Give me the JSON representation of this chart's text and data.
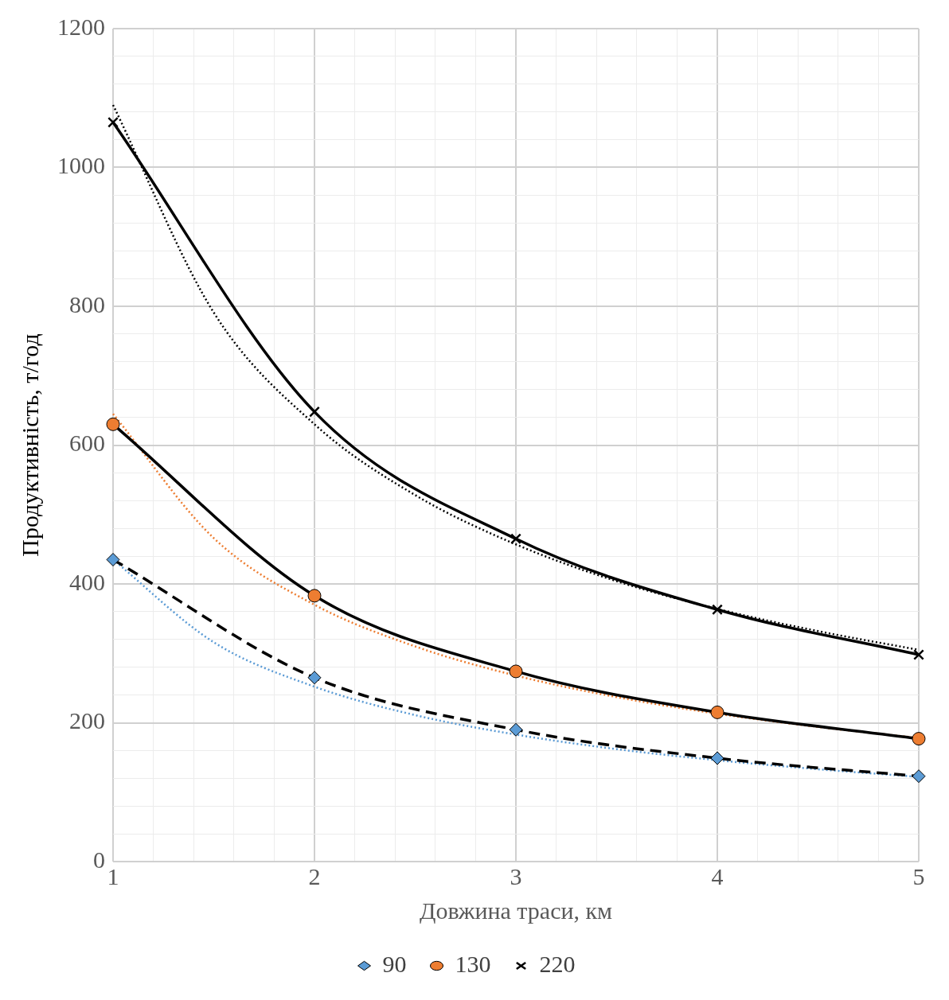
{
  "chart_data": {
    "type": "line",
    "xlabel": "Довжина траси, км",
    "ylabel": "Продуктивність, т/год",
    "x": [
      1,
      2,
      3,
      4,
      5
    ],
    "xlim": [
      1,
      5
    ],
    "xticks": [
      1,
      {
        "value": 1.2,
        "label": null
      },
      {
        "value": 1.4,
        "label": null
      },
      {
        "value": 1.6,
        "label": null
      },
      {
        "value": 1.8,
        "label": null
      },
      2,
      {
        "value": 2.2,
        "label": null
      },
      {
        "value": 2.4,
        "label": null
      },
      {
        "value": 2.6,
        "label": null
      },
      {
        "value": 2.8,
        "label": null
      },
      3,
      {
        "value": 3.2,
        "label": null
      },
      {
        "value": 3.4,
        "label": null
      },
      {
        "value": 3.6,
        "label": null
      },
      {
        "value": 3.8,
        "label": null
      },
      4,
      {
        "value": 4.2,
        "label": null
      },
      {
        "value": 4.4,
        "label": null
      },
      {
        "value": 4.6,
        "label": null
      },
      {
        "value": 4.8,
        "label": null
      },
      5
    ],
    "ylim": [
      0,
      1200
    ],
    "yticks": [
      0,
      {
        "value": 40,
        "label": null
      },
      {
        "value": 80,
        "label": null
      },
      {
        "value": 120,
        "label": null
      },
      {
        "value": 160,
        "label": null
      },
      200,
      {
        "value": 240,
        "label": null
      },
      {
        "value": 280,
        "label": null
      },
      {
        "value": 320,
        "label": null
      },
      {
        "value": 360,
        "label": null
      },
      400,
      {
        "value": 440,
        "label": null
      },
      {
        "value": 480,
        "label": null
      },
      {
        "value": 520,
        "label": null
      },
      {
        "value": 560,
        "label": null
      },
      600,
      {
        "value": 640,
        "label": null
      },
      {
        "value": 680,
        "label": null
      },
      {
        "value": 720,
        "label": null
      },
      {
        "value": 760,
        "label": null
      },
      800,
      {
        "value": 840,
        "label": null
      },
      {
        "value": 880,
        "label": null
      },
      {
        "value": 920,
        "label": null
      },
      {
        "value": 960,
        "label": null
      },
      1000,
      {
        "value": 1040,
        "label": null
      },
      {
        "value": 1080,
        "label": null
      },
      {
        "value": 1120,
        "label": null
      },
      {
        "value": 1160,
        "label": null
      },
      1200
    ],
    "grid": true,
    "legend": "bottom",
    "series": [
      {
        "name": "90",
        "color": "#5b9bd5",
        "values": [
          435,
          265,
          190,
          149,
          123
        ],
        "marker": "diamond",
        "line_style": "dashed"
      },
      {
        "name": "130",
        "color": "#ed7d31",
        "values": [
          630,
          383,
          274,
          215,
          177
        ],
        "marker": "circle",
        "line_style": "solid"
      },
      {
        "name": "220",
        "color": "#000000",
        "values": [
          1065,
          648,
          465,
          363,
          298
        ],
        "marker": "cross",
        "line_style": "solid"
      },
      {
        "color": "#5b9bd5",
        "x": [
          1,
          1.5,
          2,
          2.5,
          3,
          3.5,
          4,
          4.5,
          5
        ],
        "values": [
          435,
          316,
          252,
          211,
          183,
          162,
          146,
          133,
          122
        ],
        "marker": "none",
        "line_style": "dotted"
      },
      {
        "color": "#ed7d31",
        "x": [
          1,
          1.5,
          2,
          2.5,
          3,
          3.5,
          4,
          4.5,
          5
        ],
        "values": [
          645,
          466,
          370,
          310,
          268,
          237,
          213,
          194,
          178
        ],
        "marker": "none",
        "line_style": "dotted"
      },
      {
        "color": "#000000",
        "x": [
          1,
          1.5,
          2,
          2.5,
          3,
          3.5,
          4,
          4.5,
          5
        ],
        "values": [
          1090,
          791,
          630,
          528,
          457,
          404,
          364,
          332,
          305
        ],
        "marker": "none",
        "line_style": "dotted"
      }
    ]
  }
}
